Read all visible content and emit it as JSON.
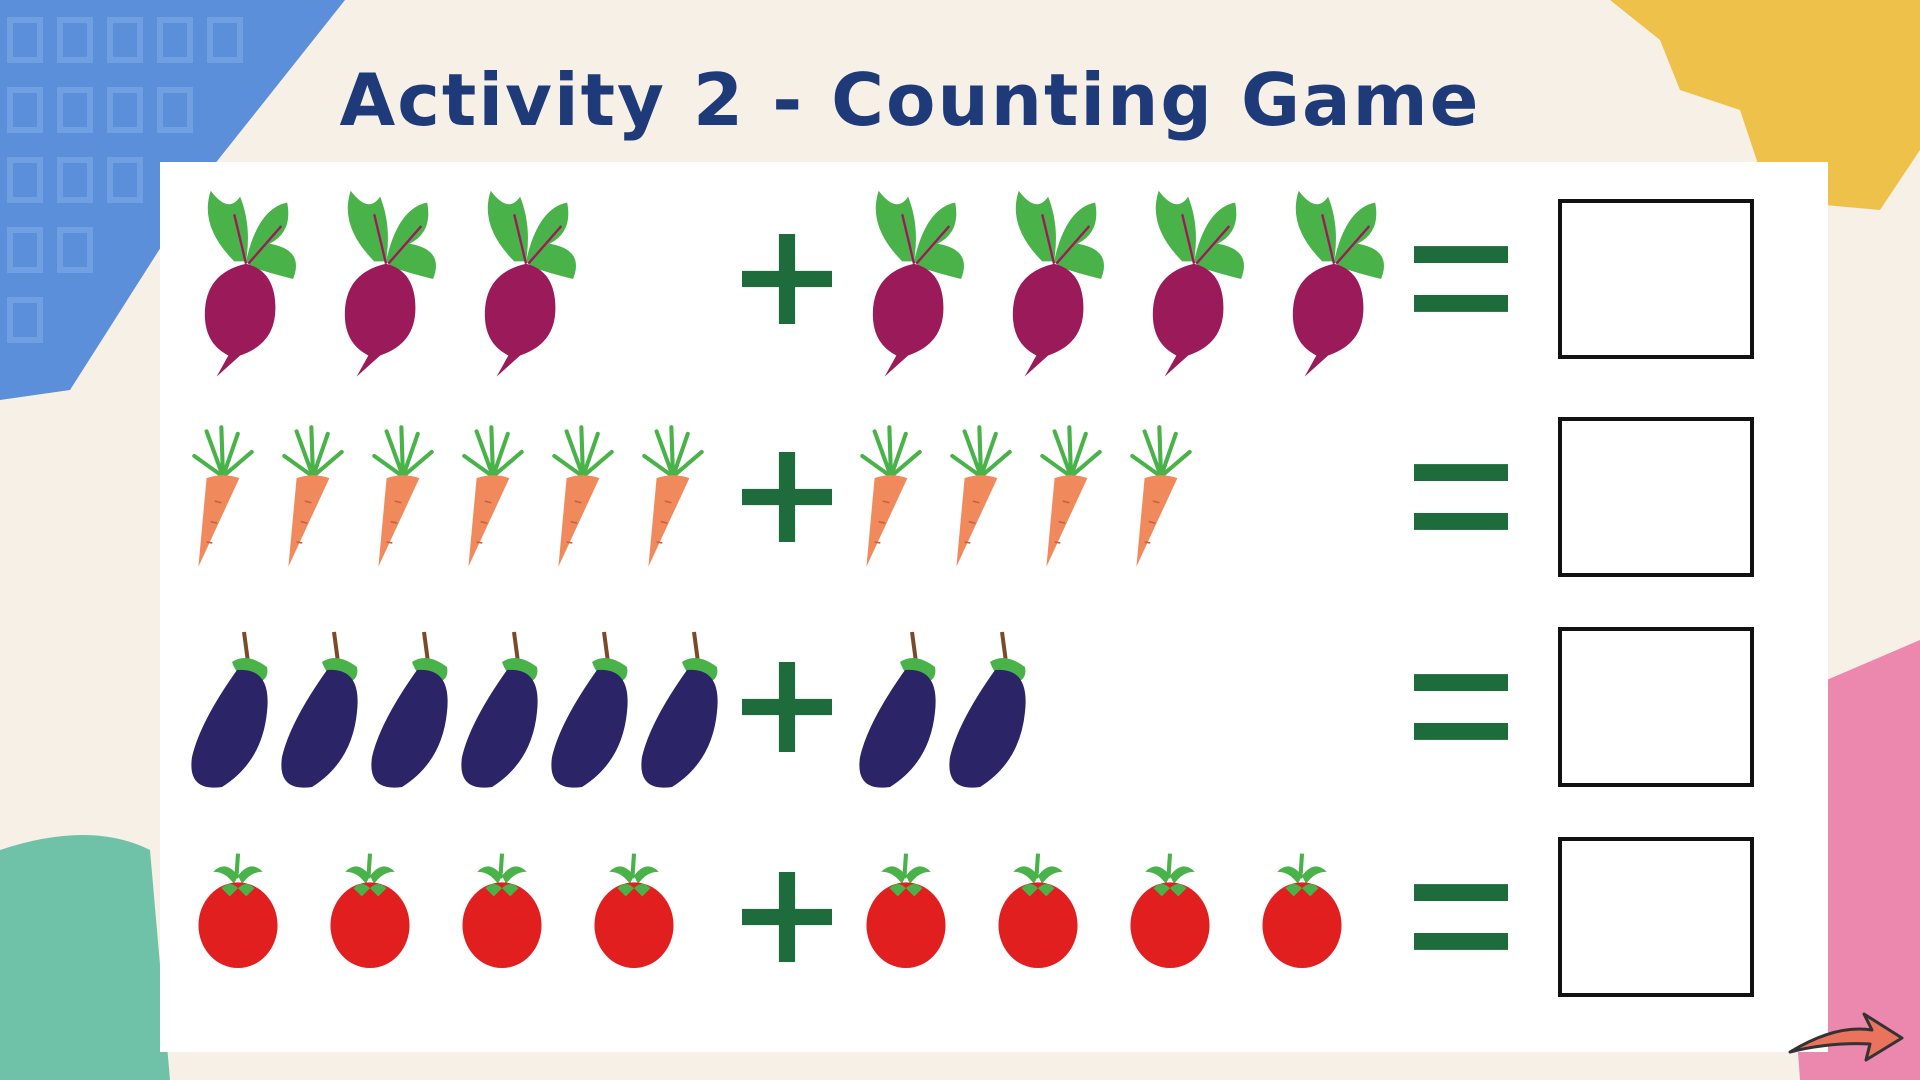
{
  "page": {
    "title": "Activity 2 - Counting Game",
    "colors": {
      "title": "#1f3a78",
      "operator": "#1e6b3c",
      "beet": "#9b1b5a",
      "leaf": "#49b34a",
      "carrot": "#f08a5d",
      "eggplant": "#2b2466",
      "tomato": "#e21f1f"
    }
  },
  "rows": [
    {
      "vegetable": "beet-icon",
      "left_count": 3,
      "right_count": 4,
      "operator": "+",
      "equals": "="
    },
    {
      "vegetable": "carrot-icon",
      "left_count": 6,
      "right_count": 4,
      "operator": "+",
      "equals": "="
    },
    {
      "vegetable": "eggplant-icon",
      "left_count": 6,
      "right_count": 2,
      "operator": "+",
      "equals": "="
    },
    {
      "vegetable": "tomato-icon",
      "left_count": 4,
      "right_count": 4,
      "operator": "+",
      "equals": "="
    }
  ],
  "navigation": {
    "next_icon": "arrow-right-icon"
  }
}
